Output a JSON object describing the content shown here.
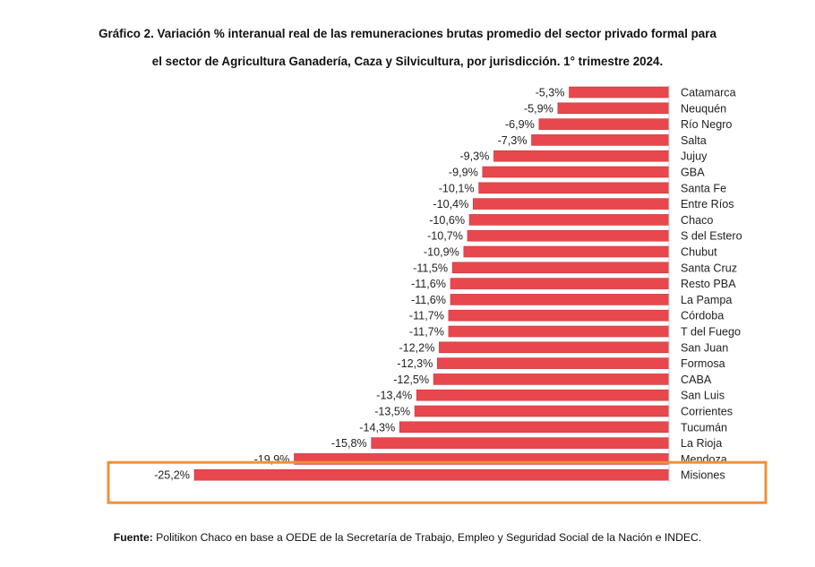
{
  "chart_data": {
    "type": "bar",
    "orientation": "horizontal",
    "title_line1": "Gráfico 2. Variación % interanual real de las remuneraciones brutas promedio del sector privado formal para",
    "title_line2": "el sector de Agricultura Ganadería, Caza y Silvicultura, por jurisdicción. 1° trimestre 2024.",
    "categories": [
      "Catamarca",
      "Neuquén",
      "Río Negro",
      "Salta",
      "Jujuy",
      "GBA",
      "Santa Fe",
      "Entre Ríos",
      "Chaco",
      "S del Estero",
      "Chubut",
      "Santa Cruz",
      "Resto PBA",
      "La Pampa",
      "Córdoba",
      "T del Fuego",
      "San Juan",
      "Formosa",
      "CABA",
      "San Luis",
      "Corrientes",
      "Tucumán",
      "La Rioja",
      "Mendoza",
      "Misiones"
    ],
    "values": [
      -5.3,
      -5.9,
      -6.9,
      -7.3,
      -9.3,
      -9.9,
      -10.1,
      -10.4,
      -10.6,
      -10.7,
      -10.9,
      -11.5,
      -11.6,
      -11.6,
      -11.7,
      -11.7,
      -12.2,
      -12.3,
      -12.5,
      -13.4,
      -13.5,
      -14.3,
      -15.8,
      -19.9,
      -25.2
    ],
    "value_labels": [
      "-5,3%",
      "-5,9%",
      "-6,9%",
      "-7,3%",
      "-9,3%",
      "-9,9%",
      "-10,1%",
      "-10,4%",
      "-10,6%",
      "-10,7%",
      "-10,9%",
      "-11,5%",
      "-11,6%",
      "-11,6%",
      "-11,7%",
      "-11,7%",
      "-12,2%",
      "-12,3%",
      "-12,5%",
      "-13,4%",
      "-13,5%",
      "-14,3%",
      "-15,8%",
      "-19,9%",
      "-25,2%"
    ],
    "xlim": [
      -25.2,
      0
    ],
    "xlabel": "",
    "ylabel": "",
    "grid": false,
    "legend": "none",
    "highlighted_category": "Misiones",
    "colors": {
      "bar": "#e8484d",
      "bar_edge": "#c9343a",
      "highlight_box": "#f0903a",
      "text": "#222222",
      "axis": "#cccccc"
    }
  },
  "source": {
    "label": "Fuente:",
    "text": " Politikon Chaco en base a OEDE de la Secretaría de Trabajo, Empleo y Seguridad Social de la Nación e INDEC."
  }
}
